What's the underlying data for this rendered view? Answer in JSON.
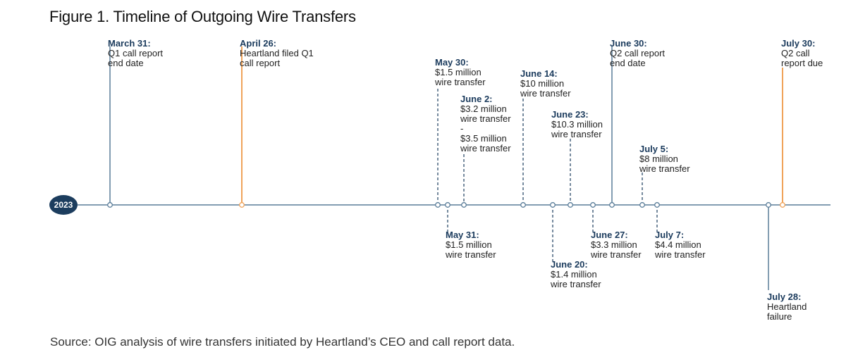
{
  "title": "Figure 1. Timeline of Outgoing Wire Transfers",
  "year": "2023",
  "source": "Source: OIG analysis of wire transfers initiated by Heartland’s CEO and call report data.",
  "colors": {
    "navy": "#1c3d5e",
    "orange": "#f0a35a",
    "line": "#5a7d99"
  },
  "events": [
    {
      "id": "mar31",
      "date": "March 31:",
      "text": "Q1 call report\nend date",
      "type": "solid",
      "side": "above"
    },
    {
      "id": "apr26",
      "date": "April 26:",
      "text": "Heartland filed Q1\ncall report",
      "type": "orange",
      "side": "above"
    },
    {
      "id": "may30",
      "date": "May 30:",
      "text": "$1.5 million\nwire transfer",
      "type": "dashed",
      "side": "above"
    },
    {
      "id": "may31",
      "date": "May 31:",
      "text": "$1.5 million\nwire transfer",
      "type": "dashed",
      "side": "below"
    },
    {
      "id": "jun2",
      "date": "June 2:",
      "text": "$3.2 million\nwire transfer\n-\n$3.5 million\nwire transfer",
      "type": "dashed",
      "side": "above"
    },
    {
      "id": "jun14",
      "date": "June 14:",
      "text": "$10 million\nwire transfer",
      "type": "dashed",
      "side": "above"
    },
    {
      "id": "jun20",
      "date": "June 20:",
      "text": "$1.4 million\nwire transfer",
      "type": "dashed",
      "side": "below"
    },
    {
      "id": "jun23",
      "date": "June 23:",
      "text": "$10.3 million\nwire transfer",
      "type": "dashed",
      "side": "above"
    },
    {
      "id": "jun27",
      "date": "June 27:",
      "text": "$3.3 million\nwire transfer",
      "type": "dashed",
      "side": "below"
    },
    {
      "id": "jun30",
      "date": "June 30:",
      "text": "Q2 call report\nend date",
      "type": "solid",
      "side": "above"
    },
    {
      "id": "jul5",
      "date": "July 5:",
      "text": "$8 million\nwire transfer",
      "type": "dashed",
      "side": "above"
    },
    {
      "id": "jul7",
      "date": "July 7:",
      "text": "$4.4 million\nwire transfer",
      "type": "dashed",
      "side": "below"
    },
    {
      "id": "jul28",
      "date": "July 28:",
      "text": "Heartland\nfailure",
      "type": "solid",
      "side": "below"
    },
    {
      "id": "jul30",
      "date": "July 30:",
      "text": "Q2 call\nreport due",
      "type": "orange",
      "side": "above"
    }
  ]
}
